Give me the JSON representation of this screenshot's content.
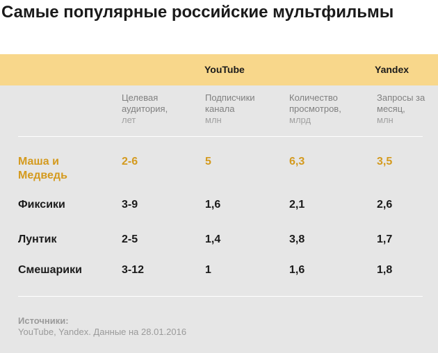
{
  "title": "Самые популярные российские мультфильмы",
  "groups": {
    "youtube": "YouTube",
    "yandex": "Yandex"
  },
  "columns": [
    {
      "label": "Целевая аудитория,",
      "unit": "лет"
    },
    {
      "label": "Подписчики канала",
      "unit": "млн"
    },
    {
      "label": "Количество просмотров,",
      "unit": "млрд"
    },
    {
      "label": "Запросы за месяц,",
      "unit": "млн"
    }
  ],
  "rows": [
    {
      "name": "Маша и Медведь",
      "audience": "2-6",
      "subscribers": "5",
      "views": "6,3",
      "queries": "3,5",
      "highlight": true
    },
    {
      "name": "Фиксики",
      "audience": "3-9",
      "subscribers": "1,6",
      "views": "2,1",
      "queries": "2,6"
    },
    {
      "name": "Лунтик",
      "audience": "2-5",
      "subscribers": "1,4",
      "views": "3,8",
      "queries": "1,7"
    },
    {
      "name": "Смешарики",
      "audience": "3-12",
      "subscribers": "1",
      "views": "1,6",
      "queries": "1,8"
    }
  ],
  "footer": {
    "label": "Источники:",
    "text": "YouTube, Yandex. Данные на 28.01.2016"
  },
  "colors": {
    "band": "#f8d78b",
    "panel": "#e6e6e6",
    "highlight": "#d49a1e"
  }
}
